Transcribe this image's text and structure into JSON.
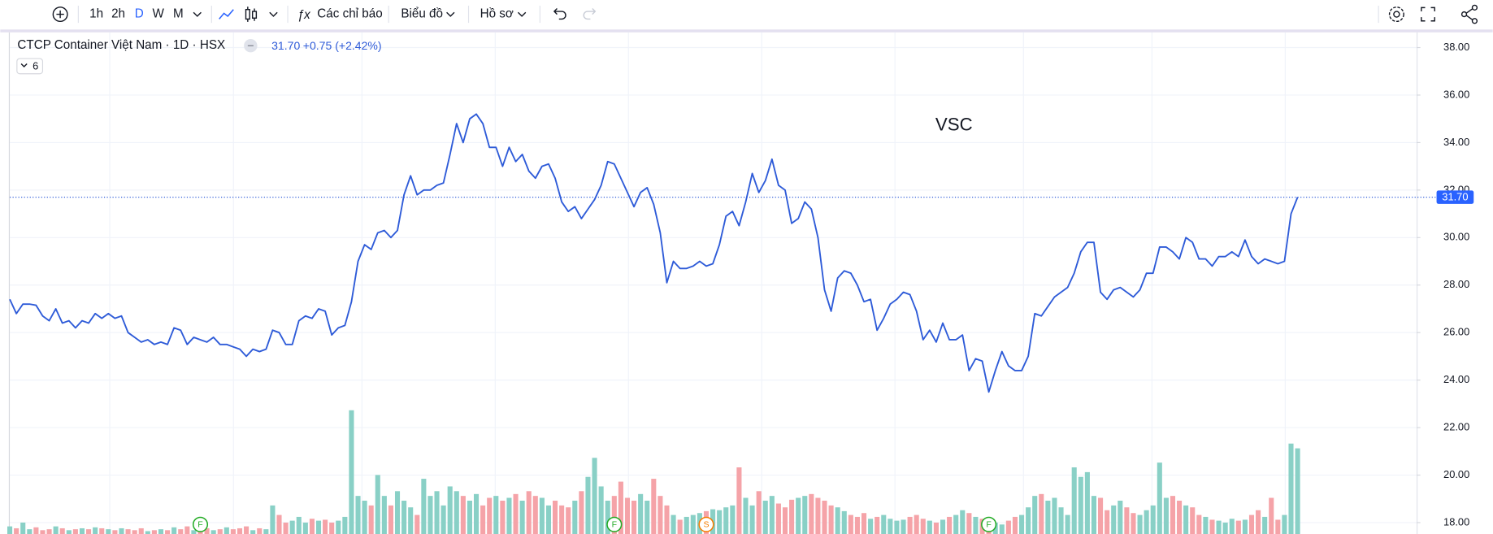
{
  "toolbar": {
    "intervals": [
      "1h",
      "2h",
      "D",
      "W",
      "M"
    ],
    "indicators": "Các chỉ báo",
    "chart_menu": "Biểu đồ",
    "profile_menu": "Hồ sơ"
  },
  "legend": {
    "study_count": "6",
    "change": "+0.75 (+2.42%)"
  },
  "chart_data": {
    "type": "line",
    "title": "VSC",
    "series": [
      {
        "name": "CTCP Container Việt Nam · 1D · HSX",
        "color": "#2e5bd8",
        "values": [
          27.4,
          26.8,
          27.2,
          27.2,
          27.15,
          26.7,
          26.5,
          27.0,
          26.4,
          26.5,
          26.2,
          26.5,
          26.4,
          26.8,
          26.6,
          26.8,
          26.6,
          26.7,
          26.0,
          25.8,
          25.6,
          25.7,
          25.5,
          25.6,
          25.5,
          26.2,
          26.1,
          25.5,
          25.8,
          25.7,
          25.6,
          25.8,
          25.5,
          25.5,
          25.4,
          25.3,
          25.0,
          25.3,
          25.2,
          25.3,
          26.1,
          26.0,
          25.5,
          25.5,
          26.5,
          26.7,
          26.6,
          27.0,
          26.9,
          25.9,
          26.2,
          26.3,
          27.3,
          29.0,
          29.7,
          29.5,
          30.2,
          30.3,
          30.0,
          30.3,
          31.8,
          32.6,
          31.8,
          32.0,
          32.0,
          32.2,
          32.3,
          33.5,
          34.8,
          34.0,
          35.0,
          35.2,
          34.8,
          33.8,
          33.8,
          33.0,
          33.8,
          33.2,
          33.5,
          32.8,
          32.5,
          33.0,
          33.1,
          32.5,
          31.5,
          31.1,
          31.3,
          30.8,
          31.2,
          31.6,
          32.2,
          33.2,
          33.1,
          32.5,
          31.9,
          31.3,
          31.9,
          32.1,
          31.4,
          30.2,
          28.1,
          29.0,
          28.7,
          28.7,
          28.8,
          29.0,
          28.8,
          28.9,
          29.7,
          30.9,
          31.1,
          30.5,
          31.5,
          32.7,
          31.9,
          32.4,
          33.3,
          32.2,
          32.0,
          30.6,
          30.8,
          31.5,
          31.2,
          30.0,
          27.8,
          26.9,
          28.3,
          28.6,
          28.5,
          28.0,
          27.3,
          27.4,
          26.1,
          26.6,
          27.2,
          27.4,
          27.7,
          27.6,
          26.9,
          25.7,
          26.1,
          25.6,
          26.4,
          25.7,
          25.7,
          25.9,
          24.4,
          24.9,
          24.8,
          23.5,
          24.4,
          25.2,
          24.6,
          24.4,
          24.4,
          25.0,
          26.8,
          26.7,
          27.1,
          27.5,
          27.7,
          27.9,
          28.5,
          29.4,
          29.8,
          29.8,
          27.7,
          27.4,
          27.8,
          27.9,
          27.7,
          27.5,
          27.8,
          28.5,
          28.5,
          29.6,
          29.6,
          29.4,
          29.1,
          30.0,
          29.8,
          29.1,
          29.1,
          28.8,
          29.2,
          29.2,
          29.4,
          29.2,
          29.9,
          29.2,
          28.9,
          29.1,
          29.0,
          28.9,
          29.0,
          31.0,
          31.7
        ]
      }
    ],
    "volume": {
      "up_color": "#89d0c6",
      "down_color": "#f5a3a8",
      "ylim": [
        0,
        140
      ],
      "values": [
        8,
        6,
        12,
        5,
        7,
        4,
        5,
        8,
        6,
        4,
        5,
        6,
        5,
        7,
        6,
        5,
        4,
        6,
        5,
        4,
        6,
        3,
        4,
        5,
        4,
        7,
        5,
        8,
        4,
        5,
        6,
        4,
        5,
        7,
        5,
        6,
        8,
        4,
        6,
        5,
        30,
        20,
        12,
        14,
        18,
        12,
        16,
        14,
        15,
        12,
        14,
        18,
        130,
        40,
        35,
        30,
        62,
        40,
        30,
        45,
        35,
        28,
        20,
        58,
        40,
        45,
        30,
        50,
        45,
        40,
        35,
        42,
        30,
        38,
        40,
        35,
        38,
        42,
        35,
        45,
        40,
        38,
        30,
        35,
        30,
        28,
        35,
        45,
        60,
        80,
        50,
        35,
        40,
        55,
        38,
        35,
        42,
        35,
        58,
        40,
        30,
        20,
        15,
        18,
        20,
        22,
        24,
        26,
        25,
        28,
        30,
        70,
        38,
        30,
        45,
        35,
        40,
        32,
        28,
        36,
        38,
        40,
        42,
        38,
        35,
        30,
        28,
        24,
        20,
        18,
        22,
        16,
        18,
        20,
        16,
        14,
        15,
        18,
        20,
        16,
        14,
        12,
        15,
        18,
        20,
        25,
        22,
        18,
        16,
        14,
        12,
        10,
        14,
        18,
        20,
        28,
        40,
        42,
        35,
        38,
        28,
        20,
        70,
        60,
        65,
        40,
        38,
        25,
        30,
        35,
        28,
        22,
        20,
        25,
        30,
        75,
        38,
        40,
        35,
        30,
        28,
        20,
        18,
        15,
        14,
        12,
        16,
        14,
        15,
        20,
        25,
        18,
        38,
        15,
        20,
        95,
        90
      ]
    },
    "events": [
      "F",
      "F",
      "S",
      "F"
    ],
    "ylim": [
      17.52,
      38.64
    ],
    "yticks": [
      {
        "value": 18,
        "label": "18.00"
      },
      {
        "value": 20,
        "label": "20.00"
      },
      {
        "value": 22,
        "label": "22.00"
      },
      {
        "value": 24,
        "label": "24.00"
      },
      {
        "value": 26,
        "label": "26.00"
      },
      {
        "value": 28,
        "label": "28.00"
      },
      {
        "value": 30,
        "label": "30.00"
      },
      {
        "value": 32,
        "label": "32.00"
      },
      {
        "value": 34,
        "label": "34.00"
      },
      {
        "value": 36,
        "label": "36.00"
      },
      {
        "value": 38,
        "label": "38.00"
      }
    ],
    "grid": true,
    "last_price": {
      "value": 31.7,
      "label": "31.70"
    }
  }
}
